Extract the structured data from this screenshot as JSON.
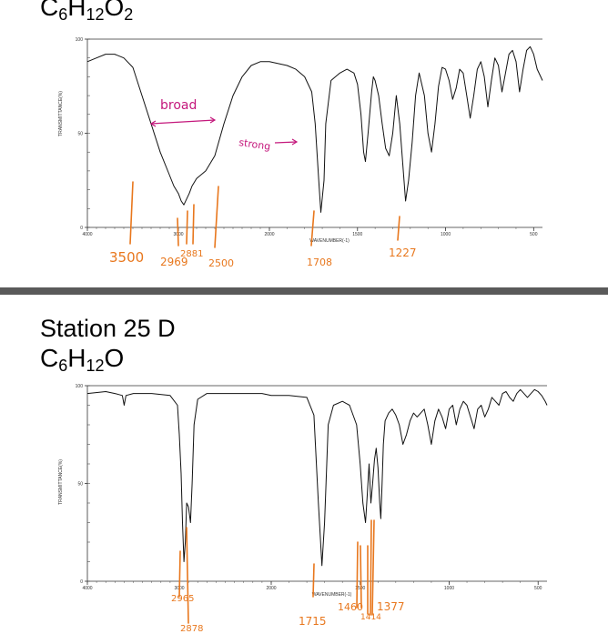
{
  "top": {
    "formula": {
      "base_c": "C",
      "c_sub": "6",
      "base_h": "H",
      "h_sub": "12",
      "base_o": "O",
      "o_sub": "2"
    }
  },
  "bottom": {
    "station_title": "Station 25 D",
    "formula": {
      "base_c": "C",
      "c_sub": "6",
      "base_h": "H",
      "h_sub": "12",
      "base_o": "O",
      "o_sub": ""
    }
  },
  "colors": {
    "annotation_orange": "#e8771d",
    "annotation_pink": "#c4187c",
    "spectrum": "#111111",
    "divider": "#5a5a5a"
  },
  "chart_data": [
    {
      "type": "line",
      "title": "",
      "xlabel": "WAVENUMBER(-1)",
      "ylabel": "TRANSMITTANCE(%)",
      "xlim": [
        4000,
        450
      ],
      "ylim": [
        0,
        100
      ],
      "x_ticks": [
        "4000",
        "3000",
        "2000",
        "1500",
        "1000",
        "500"
      ],
      "y_ticks": [
        "100",
        "50",
        "0"
      ],
      "series": [
        {
          "x": [
            4000,
            3900,
            3800,
            3700,
            3600,
            3500,
            3400,
            3300,
            3200,
            3100,
            3050,
            3000,
            2969,
            2940,
            2881,
            2850,
            2800,
            2700,
            2600,
            2500,
            2400,
            2300,
            2200,
            2100,
            2000,
            1950,
            1900,
            1850,
            1800,
            1760,
            1740,
            1720,
            1708,
            1690,
            1680,
            1650,
            1600,
            1560,
            1520,
            1500,
            1480,
            1465,
            1455,
            1440,
            1420,
            1410,
            1400,
            1380,
            1360,
            1340,
            1320,
            1300,
            1280,
            1260,
            1240,
            1227,
            1210,
            1190,
            1170,
            1150,
            1120,
            1100,
            1080,
            1060,
            1040,
            1020,
            1000,
            980,
            960,
            940,
            920,
            900,
            880,
            860,
            840,
            820,
            800,
            780,
            760,
            740,
            720,
            700,
            680,
            660,
            640,
            620,
            600,
            580,
            560,
            540,
            520,
            500,
            480,
            460,
            450
          ],
          "y": [
            88,
            90,
            92,
            92,
            90,
            85,
            70,
            55,
            40,
            28,
            22,
            18,
            14,
            12,
            18,
            22,
            26,
            30,
            38,
            55,
            70,
            80,
            86,
            88,
            88,
            87,
            86,
            84,
            80,
            72,
            55,
            25,
            8,
            25,
            55,
            78,
            82,
            84,
            82,
            76,
            60,
            40,
            35,
            50,
            72,
            80,
            78,
            70,
            55,
            42,
            38,
            50,
            70,
            55,
            30,
            14,
            25,
            45,
            70,
            82,
            70,
            50,
            40,
            55,
            75,
            85,
            84,
            78,
            68,
            74,
            84,
            82,
            70,
            58,
            70,
            84,
            88,
            80,
            64,
            78,
            90,
            86,
            72,
            82,
            92,
            94,
            88,
            72,
            84,
            94,
            96,
            92,
            84,
            80,
            78
          ]
        }
      ],
      "annotations": [
        {
          "text": "broad",
          "color": "pink"
        },
        {
          "text": "strong",
          "color": "pink"
        },
        {
          "text": "3500",
          "color": "orange"
        },
        {
          "text": "2969",
          "color": "orange"
        },
        {
          "text": "2881",
          "color": "orange"
        },
        {
          "text": "2500",
          "color": "orange"
        },
        {
          "text": "1708",
          "color": "orange"
        },
        {
          "text": "1227",
          "color": "orange"
        }
      ]
    },
    {
      "type": "line",
      "title": "",
      "xlabel": "WAVENUMBER(-1)",
      "ylabel": "TRANSMITTANCE(%)",
      "xlim": [
        4000,
        450
      ],
      "ylim": [
        0,
        100
      ],
      "x_ticks": [
        "4000",
        "3000",
        "2000",
        "1500",
        "1000",
        "500"
      ],
      "y_ticks": [
        "100",
        "50",
        "0"
      ],
      "series": [
        {
          "x": [
            4000,
            3800,
            3700,
            3620,
            3600,
            3580,
            3500,
            3300,
            3100,
            3020,
            3000,
            2980,
            2965,
            2950,
            2935,
            2920,
            2900,
            2878,
            2860,
            2840,
            2800,
            2700,
            2600,
            2500,
            2300,
            2100,
            2000,
            1900,
            1800,
            1760,
            1735,
            1715,
            1700,
            1680,
            1650,
            1600,
            1560,
            1520,
            1500,
            1485,
            1470,
            1460,
            1450,
            1440,
            1430,
            1420,
            1410,
            1400,
            1390,
            1384,
            1377,
            1370,
            1360,
            1340,
            1320,
            1300,
            1280,
            1260,
            1240,
            1220,
            1200,
            1180,
            1160,
            1140,
            1120,
            1100,
            1080,
            1060,
            1040,
            1020,
            1000,
            980,
            960,
            940,
            920,
            900,
            880,
            860,
            840,
            820,
            800,
            780,
            760,
            740,
            720,
            700,
            680,
            660,
            640,
            620,
            600,
            580,
            560,
            540,
            520,
            500,
            480,
            460,
            450
          ],
          "y": [
            96,
            97,
            96,
            95,
            90,
            95,
            96,
            96,
            95,
            90,
            75,
            55,
            30,
            10,
            20,
            40,
            38,
            30,
            50,
            80,
            93,
            96,
            96,
            96,
            96,
            96,
            95,
            95,
            94,
            85,
            40,
            8,
            30,
            80,
            90,
            92,
            90,
            80,
            60,
            40,
            30,
            45,
            60,
            40,
            50,
            62,
            68,
            58,
            40,
            32,
            50,
            70,
            82,
            86,
            88,
            85,
            80,
            70,
            75,
            82,
            86,
            84,
            86,
            88,
            80,
            70,
            82,
            88,
            84,
            78,
            88,
            90,
            80,
            88,
            92,
            90,
            84,
            78,
            88,
            90,
            84,
            88,
            94,
            92,
            90,
            96,
            97,
            94,
            92,
            96,
            98,
            96,
            94,
            96,
            98,
            97,
            95,
            92,
            90
          ]
        }
      ],
      "annotations": [
        {
          "text": "2965",
          "color": "orange"
        },
        {
          "text": "2878",
          "color": "orange"
        },
        {
          "text": "1715",
          "color": "orange"
        },
        {
          "text": "1460",
          "color": "orange"
        },
        {
          "text": "1377",
          "color": "orange"
        },
        {
          "text": "1414",
          "color": "orange"
        }
      ]
    }
  ]
}
